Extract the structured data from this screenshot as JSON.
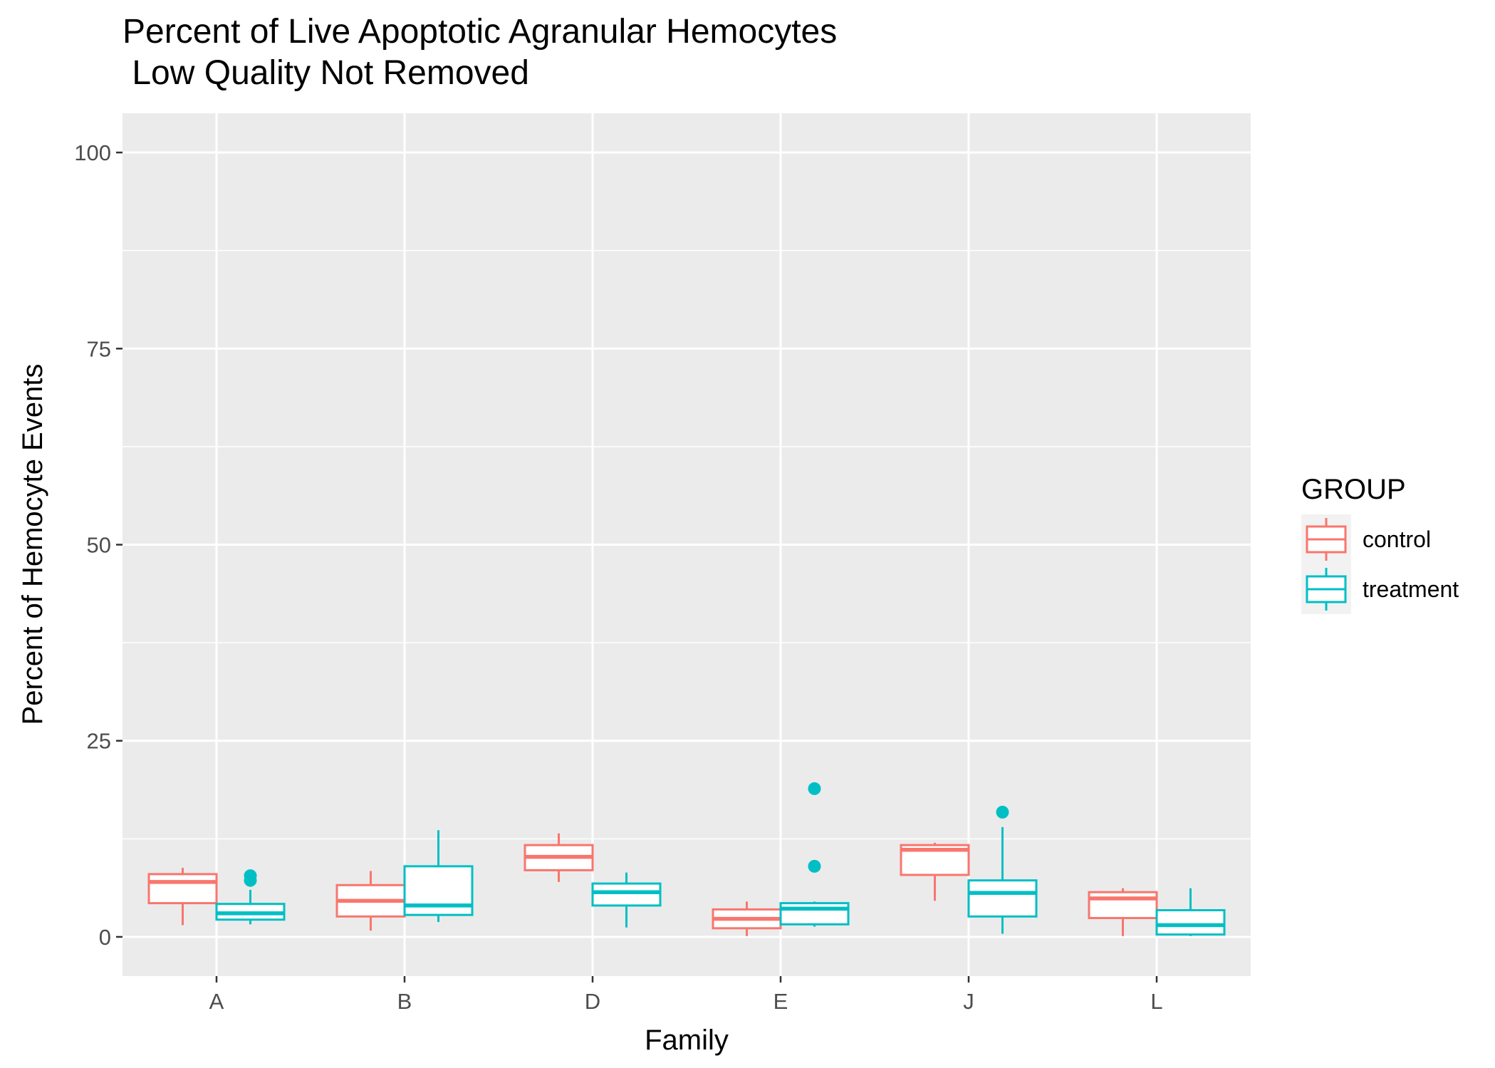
{
  "chart_data": {
    "type": "boxplot",
    "title": "Percent of Live Apoptotic Agranular Hemocytes",
    "subtitle": " Low Quality Not Removed",
    "xlabel": "Family",
    "ylabel": "Percent of Hemocyte Events",
    "ylim": [
      -5,
      105
    ],
    "yticks": [
      0,
      25,
      50,
      75,
      100
    ],
    "grid": true,
    "categories": [
      "A",
      "B",
      "D",
      "E",
      "J",
      "L"
    ],
    "legend": {
      "title": "GROUP",
      "position": "right",
      "entries": [
        "control",
        "treatment"
      ]
    },
    "series": [
      {
        "name": "control",
        "color": "#F8766D",
        "boxes": [
          {
            "category": "A",
            "min": 1.5,
            "q1": 4.3,
            "median": 7.0,
            "q3": 8.0,
            "max": 8.8,
            "outliers": []
          },
          {
            "category": "B",
            "min": 0.8,
            "q1": 2.6,
            "median": 4.6,
            "q3": 6.6,
            "max": 8.4,
            "outliers": []
          },
          {
            "category": "D",
            "min": 7.0,
            "q1": 8.5,
            "median": 10.2,
            "q3": 11.7,
            "max": 13.2,
            "outliers": []
          },
          {
            "category": "E",
            "min": 0.1,
            "q1": 1.1,
            "median": 2.3,
            "q3": 3.5,
            "max": 4.5,
            "outliers": []
          },
          {
            "category": "J",
            "min": 4.6,
            "q1": 7.9,
            "median": 11.1,
            "q3": 11.7,
            "max": 12.0,
            "outliers": []
          },
          {
            "category": "L",
            "min": 0.1,
            "q1": 2.4,
            "median": 4.9,
            "q3": 5.7,
            "max": 6.2,
            "outliers": []
          }
        ]
      },
      {
        "name": "treatment",
        "color": "#00BFC4",
        "boxes": [
          {
            "category": "A",
            "min": 1.6,
            "q1": 2.2,
            "median": 3.0,
            "q3": 4.2,
            "max": 6.0,
            "outliers": [
              7.2,
              7.8
            ]
          },
          {
            "category": "B",
            "min": 1.9,
            "q1": 2.8,
            "median": 4.0,
            "q3": 9.0,
            "max": 13.6,
            "outliers": []
          },
          {
            "category": "D",
            "min": 1.2,
            "q1": 4.0,
            "median": 5.7,
            "q3": 6.8,
            "max": 8.2,
            "outliers": []
          },
          {
            "category": "E",
            "min": 1.3,
            "q1": 1.6,
            "median": 3.6,
            "q3": 4.3,
            "max": 4.5,
            "outliers": [
              9.0,
              18.9
            ]
          },
          {
            "category": "J",
            "min": 0.4,
            "q1": 2.6,
            "median": 5.6,
            "q3": 7.2,
            "max": 14.0,
            "outliers": [
              15.9
            ]
          },
          {
            "category": "L",
            "min": 0.1,
            "q1": 0.3,
            "median": 1.5,
            "q3": 3.4,
            "max": 6.2,
            "outliers": []
          }
        ]
      }
    ]
  }
}
